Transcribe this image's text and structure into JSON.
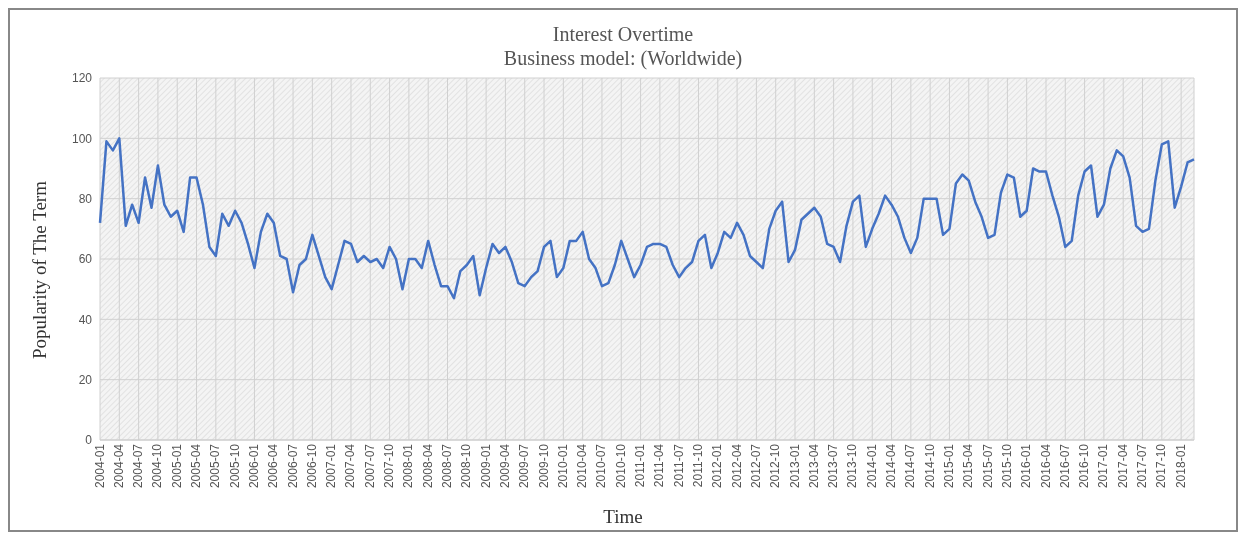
{
  "chart_data": {
    "type": "line",
    "title": "Interest Overtime",
    "subtitle": "Business model: (Worldwide)",
    "xlabel": "Time",
    "ylabel": "Popularity of The Term",
    "categories": [
      "2004-01",
      null,
      null,
      "2004-04",
      null,
      null,
      "2004-07",
      null,
      null,
      "2004-10",
      null,
      null,
      "2005-01",
      null,
      null,
      "2005-04",
      null,
      null,
      "2005-07",
      null,
      null,
      "2005-10",
      null,
      null,
      "2006-01",
      null,
      null,
      "2006-04",
      null,
      null,
      "2006-07",
      null,
      null,
      "2006-10",
      null,
      null,
      "2007-01",
      null,
      null,
      "2007-04",
      null,
      null,
      "2007-07",
      null,
      null,
      "2007-10",
      null,
      null,
      "2008-01",
      null,
      null,
      "2008-04",
      null,
      null,
      "2008-07",
      null,
      null,
      "2008-10",
      null,
      null,
      "2009-01",
      null,
      null,
      "2009-04",
      null,
      null,
      "2009-07",
      null,
      null,
      "2009-10",
      null,
      null,
      "2010-01",
      null,
      null,
      "2010-04",
      null,
      null,
      "2010-07",
      null,
      null,
      "2010-10",
      null,
      null,
      "2011-01",
      null,
      null,
      "2011-04",
      null,
      null,
      "2011-07",
      null,
      null,
      "2011-10",
      null,
      null,
      "2012-01",
      null,
      null,
      "2012-04",
      null,
      null,
      "2012-07",
      null,
      null,
      "2012-10",
      null,
      null,
      "2013-01",
      null,
      null,
      "2013-04",
      null,
      null,
      "2013-07",
      null,
      null,
      "2013-10",
      null,
      null,
      "2014-01",
      null,
      null,
      "2014-04",
      null,
      null,
      "2014-07",
      null,
      null,
      "2014-10",
      null,
      null,
      "2015-01",
      null,
      null,
      "2015-04",
      null,
      null,
      "2015-07",
      null,
      null,
      "2015-10",
      null,
      null,
      "2016-01",
      null,
      null,
      "2016-04",
      null,
      null,
      "2016-07",
      null,
      null,
      "2016-10",
      null,
      null,
      "2017-01",
      null,
      null,
      "2017-04",
      null,
      null,
      "2017-07",
      null,
      null,
      "2017-10",
      null,
      null,
      "2018-01",
      null,
      null
    ],
    "series": [
      {
        "color": "#4472c4",
        "values": [
          72,
          99,
          96,
          100,
          71,
          78,
          72,
          87,
          77,
          91,
          78,
          74,
          76,
          69,
          87,
          87,
          78,
          64,
          61,
          75,
          71,
          76,
          72,
          65,
          57,
          69,
          75,
          72,
          61,
          60,
          49,
          58,
          60,
          68,
          61,
          54,
          50,
          58,
          66,
          65,
          59,
          61,
          59,
          60,
          57,
          64,
          60,
          50,
          60,
          60,
          57,
          66,
          58,
          51,
          51,
          47,
          56,
          58,
          61,
          48,
          57,
          65,
          62,
          64,
          59,
          52,
          51,
          54,
          56,
          64,
          66,
          54,
          57,
          66,
          66,
          69,
          60,
          57,
          51,
          52,
          58,
          66,
          60,
          54,
          58,
          64,
          65,
          65,
          64,
          58,
          54,
          57,
          59,
          66,
          68,
          57,
          62,
          69,
          67,
          72,
          68,
          61,
          59,
          57,
          70,
          76,
          79,
          59,
          63,
          73,
          75,
          77,
          74,
          65,
          64,
          59,
          71,
          79,
          81,
          64,
          70,
          75,
          81,
          78,
          74,
          67,
          62,
          67,
          80,
          80,
          80,
          68,
          70,
          85,
          88,
          86,
          79,
          74,
          67,
          68,
          82,
          88,
          87,
          74,
          76,
          90,
          89,
          89,
          81,
          74,
          64,
          66,
          81,
          89,
          91,
          74,
          78,
          90,
          96,
          94,
          87,
          71,
          69,
          70,
          86,
          98,
          99,
          77,
          84,
          92,
          93
        ]
      }
    ],
    "ylim": [
      0,
      120
    ],
    "yticks": [
      0,
      20,
      40,
      60,
      80,
      100,
      120
    ],
    "grid": true,
    "legend": false,
    "marker": "none",
    "line_style": "solid"
  }
}
